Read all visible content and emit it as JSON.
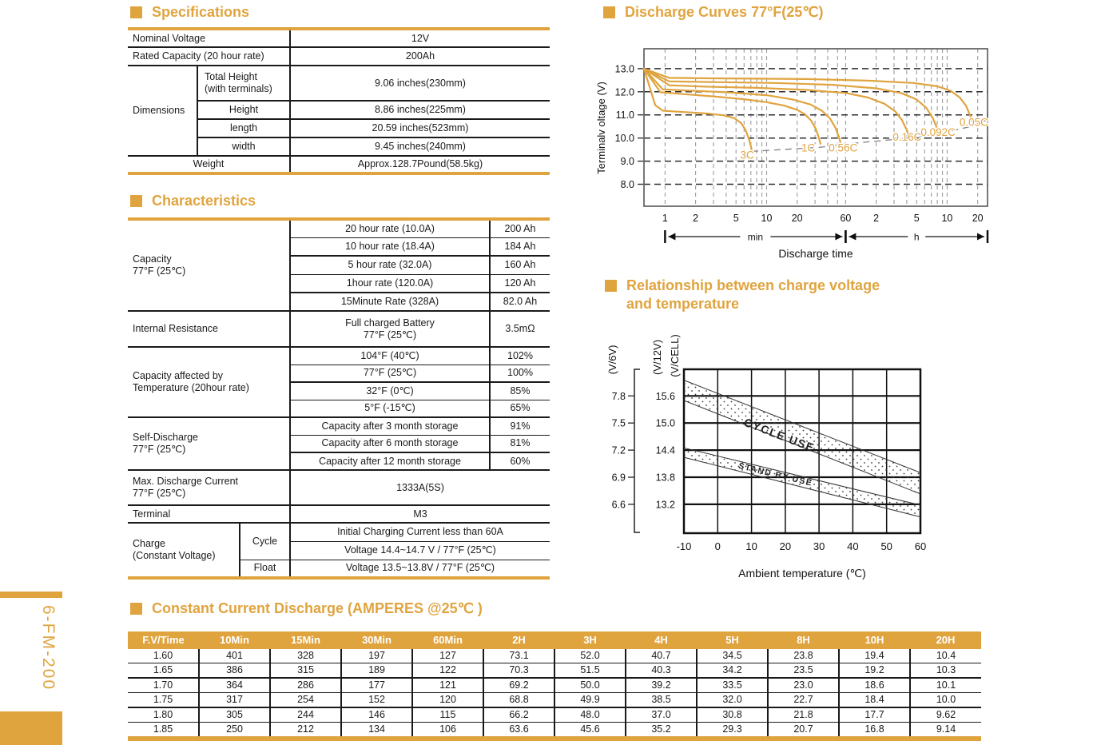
{
  "palette": {
    "accent": "#e0a43f",
    "ink": "#1a1a1a"
  },
  "side_model": "6-FM-200",
  "headings": {
    "specifications": "Specifications",
    "characteristics": "Characteristics",
    "discharge": "Discharge Curves 77°F(25℃)",
    "relationship_line1": "Relationship between charge voltage",
    "relationship_line2": "and temperature",
    "ccd": "Constant Current Discharge  (AMPERES @25℃ )"
  },
  "spec_table": {
    "simple_rows": [
      {
        "label": "Nominal Voltage",
        "value": "12V"
      },
      {
        "label": "Rated Capacity (20 hour rate)",
        "value": "200Ah"
      }
    ],
    "dimensions_label": "Dimensions",
    "dimension_rows": [
      {
        "label": "Total Height\n(with terminals)",
        "value": "9.06 inches(230mm)"
      },
      {
        "label": "Height",
        "value": "8.86 inches(225mm)"
      },
      {
        "label": "length",
        "value": "20.59 inches(523mm)"
      },
      {
        "label": "width",
        "value": "9.45 inches(240mm)"
      }
    ],
    "weight_row": {
      "label": "Weight",
      "value": "Approx.128.7Pound(58.5kg)"
    }
  },
  "characteristics_table": {
    "groups": [
      {
        "label": "Capacity\n77°F (25℃)",
        "rows": [
          {
            "name": "20 hour rate (10.0A)",
            "value": "200 Ah"
          },
          {
            "name": "10 hour rate (18.4A)",
            "value": "184 Ah"
          },
          {
            "name": "5 hour rate (32.0A)",
            "value": "160 Ah"
          },
          {
            "name": "1hour rate (120.0A)",
            "value": "120 Ah"
          },
          {
            "name": "15Minute Rate (328A)",
            "value": "82.0 Ah"
          }
        ]
      },
      {
        "label": "Internal Resistance",
        "rows": [
          {
            "name": "Full charged Battery\n77°F (25℃)",
            "value": "3.5mΩ"
          }
        ]
      },
      {
        "label": "Capacity affected by\nTemperature (20hour rate)",
        "rows": [
          {
            "name": "104°F (40℃)",
            "value": "102%"
          },
          {
            "name": "77°F (25℃)",
            "value": "100%"
          },
          {
            "name": "32°F (0℃)",
            "value": "85%"
          },
          {
            "name": "5°F (-15℃)",
            "value": "65%"
          }
        ]
      },
      {
        "label": "Self-Discharge\n77°F (25℃)",
        "rows": [
          {
            "name": "Capacity after 3 month storage",
            "value": "91%"
          },
          {
            "name": "Capacity after 6 month storage",
            "value": "81%"
          },
          {
            "name": "Capacity after 12 month storage",
            "value": "60%"
          }
        ]
      },
      {
        "label": "Max. Discharge Current\n77°F (25℃)",
        "merged": "1333A(5S)"
      },
      {
        "label": "Terminal",
        "merged": "M3"
      }
    ],
    "charge": {
      "label": "Charge\n(Constant Voltage)",
      "modes": [
        {
          "name": "Cycle",
          "lines": [
            "Initial Charging Current less than 60A",
            "Voltage 14.4~14.7 V / 77°F (25℃)"
          ]
        },
        {
          "name": "Float",
          "lines": [
            "Voltage 13.5~13.8V / 77°F (25℃)"
          ]
        }
      ]
    }
  },
  "ccd_table": {
    "headers": [
      "F.V/Time",
      "10Min",
      "15Min",
      "30Min",
      "60Min",
      "2H",
      "3H",
      "4H",
      "5H",
      "8H",
      "10H",
      "20H"
    ],
    "rows": [
      [
        "1.60",
        "401",
        "328",
        "197",
        "127",
        "73.1",
        "52.0",
        "40.7",
        "34.5",
        "23.8",
        "19.4",
        "10.4"
      ],
      [
        "1.65",
        "386",
        "315",
        "189",
        "122",
        "70.3",
        "51.5",
        "40.3",
        "34.2",
        "23.5",
        "19.2",
        "10.3"
      ],
      [
        "1.70",
        "364",
        "286",
        "177",
        "121",
        "69.2",
        "50.0",
        "39.2",
        "33.5",
        "23.0",
        "18.6",
        "10.1"
      ],
      [
        "1.75",
        "317",
        "254",
        "152",
        "120",
        "68.8",
        "49.9",
        "38.5",
        "32.0",
        "22.7",
        "18.4",
        "10.0"
      ],
      [
        "1.80",
        "305",
        "244",
        "146",
        "115",
        "66.2",
        "48.0",
        "37.0",
        "30.8",
        "21.8",
        "17.7",
        "9.62"
      ],
      [
        "1.85",
        "250",
        "212",
        "134",
        "106",
        "63.6",
        "45.6",
        "35.2",
        "29.3",
        "20.7",
        "16.8",
        "9.14"
      ]
    ]
  },
  "chart_data": [
    {
      "type": "line",
      "title": "Discharge Curves 77°F(25℃)",
      "xlabel": "Discharge time",
      "ylabel": "Terminalv oltage (V)",
      "x_scale": "log",
      "x_unit": "minutes",
      "x_range": [
        0.62,
        1500
      ],
      "ylim": [
        7.05,
        13.86
      ],
      "y_ticks": [
        8.0,
        9.0,
        10.0,
        11.0,
        12.0,
        13.0
      ],
      "x_axis_min_ticks": [
        1,
        2,
        5,
        10,
        20,
        60
      ],
      "x_axis_hour_ticks": [
        2,
        5,
        10,
        20
      ],
      "x_gridlines_minutes": [
        1,
        2,
        3,
        4,
        5,
        6,
        7,
        8,
        9,
        10,
        20,
        30,
        40,
        50,
        60,
        120,
        180,
        240,
        300,
        360,
        420,
        480,
        540,
        600,
        1200
      ],
      "axis_segments": [
        {
          "label": "min",
          "from": 1,
          "to": 60
        },
        {
          "label": "h",
          "from": 60,
          "to": 1500
        }
      ],
      "series": [
        {
          "name": "3C",
          "label_at": [
            5.5,
            9.1
          ],
          "anchor": "start",
          "points": [
            [
              0.62,
              13
            ],
            [
              0.8,
              11.42
            ],
            [
              0.95,
              11.18
            ],
            [
              1.6,
              11.12
            ],
            [
              2.6,
              11.06
            ],
            [
              3.8,
              10.98
            ],
            [
              4.8,
              10.86
            ],
            [
              5.6,
              10.65
            ],
            [
              6.2,
              10.35
            ],
            [
              6.7,
              9.95
            ],
            [
              7.0,
              9.65
            ],
            [
              7.15,
              9.45
            ]
          ]
        },
        {
          "name": "1C",
          "label_at": [
            22,
            9.42
          ],
          "anchor": "start",
          "points": [
            [
              0.62,
              13
            ],
            [
              0.9,
              11.98
            ],
            [
              1.5,
              11.9
            ],
            [
              3,
              11.8
            ],
            [
              6,
              11.68
            ],
            [
              10,
              11.55
            ],
            [
              15,
              11.4
            ],
            [
              20,
              11.22
            ],
            [
              24,
              11.02
            ],
            [
              27.5,
              10.75
            ],
            [
              30.5,
              10.4
            ],
            [
              32.8,
              10.0
            ],
            [
              34,
              9.75
            ]
          ]
        },
        {
          "name": "0.56C",
          "label_at": [
            41,
            9.42
          ],
          "anchor": "start",
          "points": [
            [
              0.62,
              13
            ],
            [
              0.95,
              12.1
            ],
            [
              1.8,
              12.05
            ],
            [
              4,
              11.98
            ],
            [
              10,
              11.85
            ],
            [
              18,
              11.67
            ],
            [
              27,
              11.45
            ],
            [
              35,
              11.18
            ],
            [
              42,
              10.85
            ],
            [
              47.5,
              10.45
            ],
            [
              51.5,
              10.05
            ],
            [
              53.5,
              9.8
            ]
          ]
        },
        {
          "name": "0.16C",
          "label_at": [
            175,
            9.88
          ],
          "anchor": "start",
          "points": [
            [
              0.62,
              13
            ],
            [
              1.1,
              12.28
            ],
            [
              2.5,
              12.22
            ],
            [
              8,
              12.17
            ],
            [
              25,
              12.08
            ],
            [
              60,
              11.95
            ],
            [
              100,
              11.75
            ],
            [
              145,
              11.48
            ],
            [
              185,
              11.15
            ],
            [
              215,
              10.78
            ],
            [
              240,
              10.35
            ],
            [
              252,
              10.05
            ]
          ]
        },
        {
          "name": "0.092C",
          "label_at": [
            330,
            10.1
          ],
          "anchor": "start",
          "points": [
            [
              0.62,
              13
            ],
            [
              1.1,
              12.45
            ],
            [
              3,
              12.42
            ],
            [
              12,
              12.38
            ],
            [
              45,
              12.3
            ],
            [
              120,
              12.15
            ],
            [
              210,
              11.95
            ],
            [
              300,
              11.67
            ],
            [
              375,
              11.3
            ],
            [
              435,
              10.85
            ],
            [
              480,
              10.4
            ],
            [
              500,
              10.15
            ]
          ]
        },
        {
          "name": "0.05C",
          "label_at": [
            1100,
            10.52
          ],
          "anchor": "middle",
          "points": [
            [
              0.62,
              13
            ],
            [
              1.1,
              12.6
            ],
            [
              3,
              12.58
            ],
            [
              25,
              12.55
            ],
            [
              100,
              12.48
            ],
            [
              280,
              12.38
            ],
            [
              480,
              12.24
            ],
            [
              650,
              12.04
            ],
            [
              800,
              11.75
            ],
            [
              920,
              11.4
            ],
            [
              1010,
              10.98
            ],
            [
              1070,
              10.68
            ]
          ]
        }
      ],
      "cutoff_line": [
        [
          7.15,
          9.42
        ],
        [
          34,
          9.6
        ],
        [
          53.5,
          9.72
        ],
        [
          252,
          10.0
        ],
        [
          500,
          10.18
        ],
        [
          1070,
          10.52
        ],
        [
          1480,
          10.78
        ]
      ]
    },
    {
      "type": "band",
      "title": "Relationship between charge voltage and temperature",
      "xlabel": "Ambient temperature (℃)",
      "x_ticks": [
        -10,
        0,
        10,
        20,
        30,
        40,
        50,
        60
      ],
      "y_axis_6v": {
        "title": "(V/6V)",
        "ticks": [
          7.8,
          7.5,
          7.2,
          6.9,
          6.6
        ]
      },
      "y_axis_12v": {
        "titles": [
          "(V/12V)",
          "(V/CELL)"
        ],
        "ticks": [
          15.6,
          15.0,
          14.4,
          13.8,
          13.2
        ]
      },
      "ylim_12v": [
        12.56,
        16.19
      ],
      "bands": [
        {
          "name": "CYCLE USE",
          "upper": [
            [
              -10,
              15.95
            ],
            [
              60,
              13.9
            ]
          ],
          "lower": [
            [
              -10,
              15.5
            ],
            [
              60,
              13.43
            ]
          ],
          "label_at": [
            7.5,
            14.95
          ],
          "label_angle": 21,
          "label_size": 14
        },
        {
          "name": "STAND BY USE",
          "upper": [
            [
              -10,
              14.45
            ],
            [
              60,
              13.18
            ]
          ],
          "lower": [
            [
              -10,
              14.24
            ],
            [
              60,
              12.92
            ]
          ],
          "label_at": [
            6,
            14.0
          ],
          "label_angle": 13.5,
          "label_size": 10.5
        }
      ]
    }
  ]
}
